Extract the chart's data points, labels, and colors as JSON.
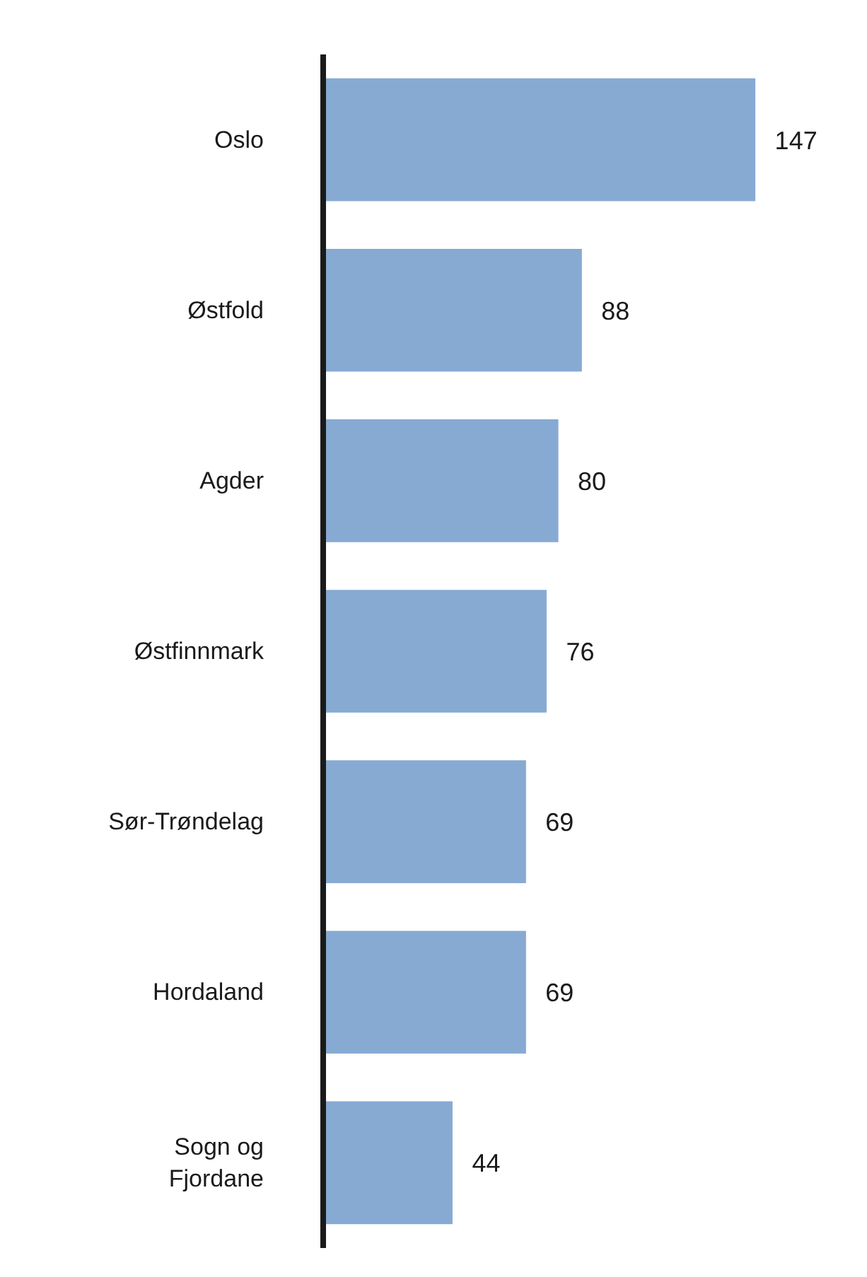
{
  "chart_data": {
    "type": "bar",
    "orientation": "horizontal",
    "categories": [
      "Oslo",
      "Østfold",
      "Agder",
      "Østfinnmark",
      "Sør-Trøndelag",
      "Hordaland",
      "Sogn og Fjordane"
    ],
    "values": [
      147,
      88,
      80,
      76,
      69,
      69,
      44
    ],
    "color": "#87aad3",
    "data_labels": true,
    "tick_labels": "y"
  }
}
